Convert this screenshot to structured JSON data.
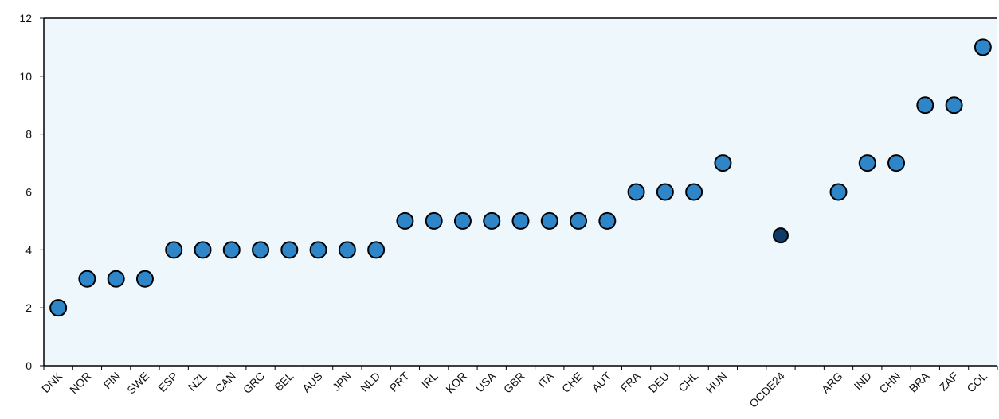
{
  "chart_data": {
    "type": "scatter",
    "categories": [
      "DNK",
      "NOR",
      "FIN",
      "SWE",
      "ESP",
      "NZL",
      "CAN",
      "GRC",
      "BEL",
      "AUS",
      "JPN",
      "NLD",
      "PRT",
      "IRL",
      "KOR",
      "USA",
      "GBR",
      "ITA",
      "CHE",
      "AUT",
      "FRA",
      "DEU",
      "CHL",
      "HUN",
      "",
      "OCDE24",
      "",
      "ARG",
      "IND",
      "CHN",
      "BRA",
      "ZAF",
      "COL"
    ],
    "values": [
      2,
      3,
      3,
      3,
      4,
      4,
      4,
      4,
      4,
      4,
      4,
      4,
      5,
      5,
      5,
      5,
      5,
      5,
      5,
      5,
      6,
      6,
      6,
      7,
      null,
      4.5,
      null,
      6,
      7,
      7,
      9,
      9,
      11
    ],
    "highlight": [
      "OCDE24"
    ],
    "yticks": [
      "0",
      "2",
      "4",
      "6",
      "8",
      "10",
      "12"
    ],
    "ylim": [
      0,
      12
    ],
    "grid": false,
    "colors": {
      "plot_background": "#eef7fc",
      "point_fill": "#2e86c9",
      "highlight_fill": "#0d3a66",
      "point_stroke": "#000000"
    }
  }
}
